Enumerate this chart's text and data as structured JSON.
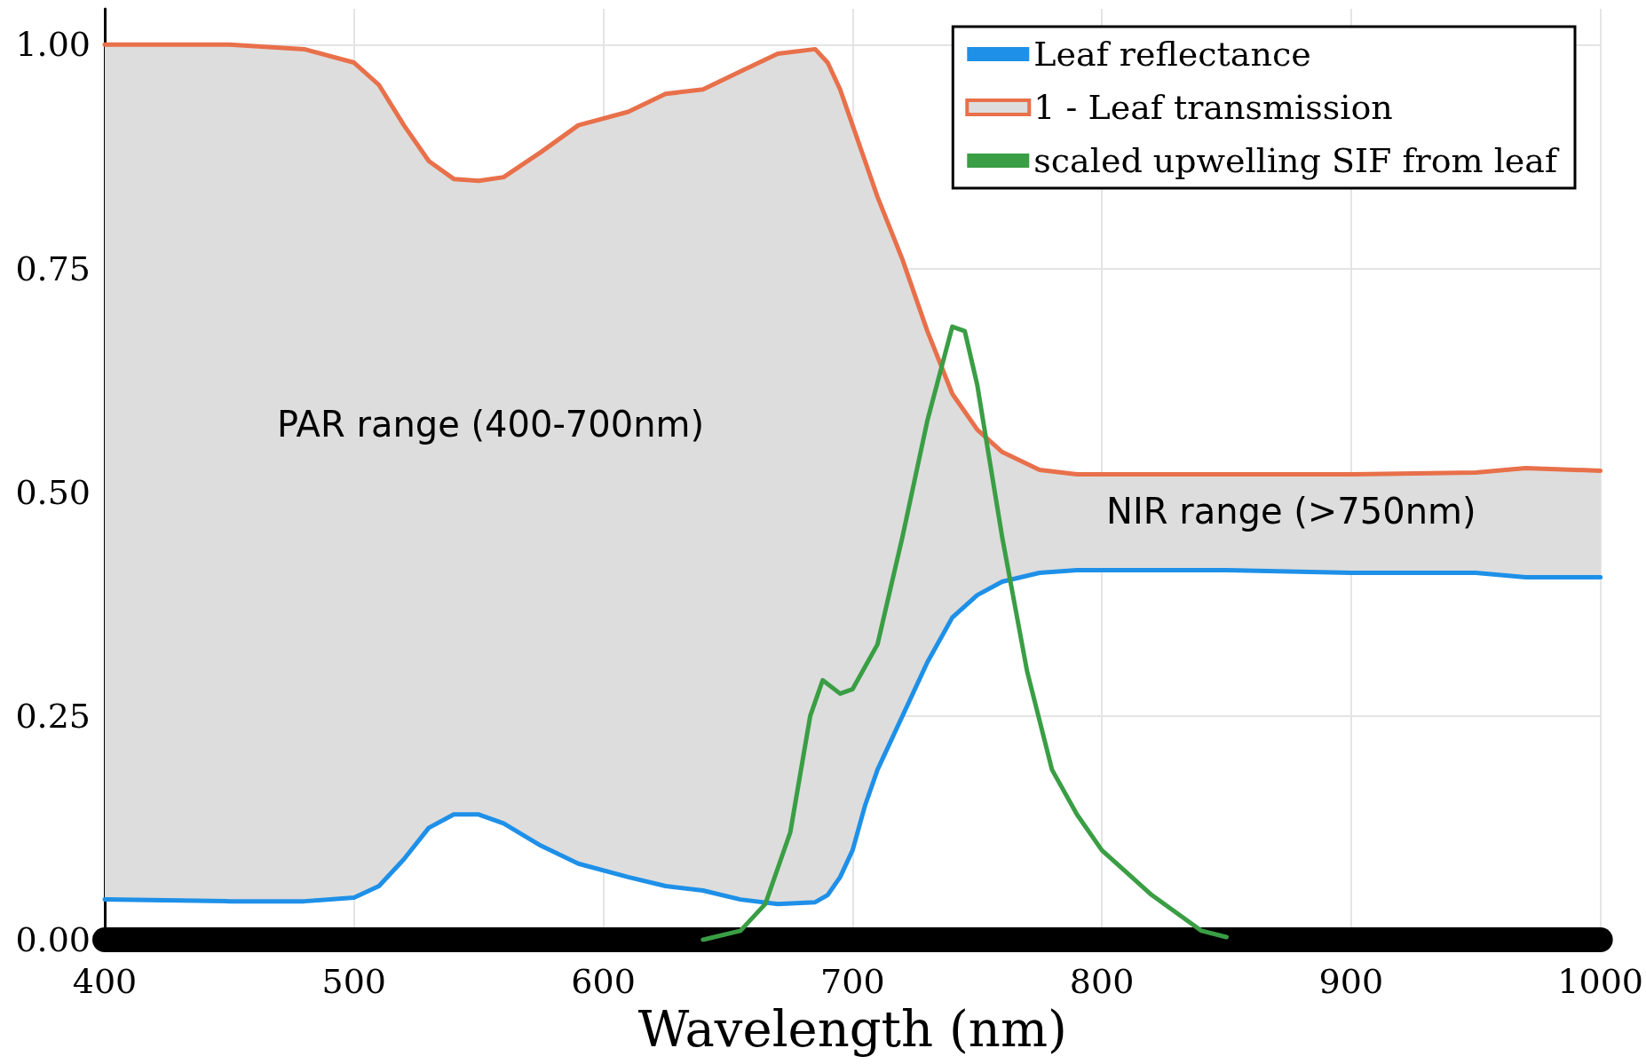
{
  "chart_data": {
    "type": "line",
    "xlabel": "Wavelength (nm)",
    "xlim": [
      400,
      1000
    ],
    "xticks": [
      400,
      500,
      600,
      700,
      800,
      900,
      1000
    ],
    "ylim": [
      0,
      1.04
    ],
    "yticks": [
      {
        "value": 0,
        "label": "0.00"
      },
      {
        "value": 0.25,
        "label": "0.25"
      },
      {
        "value": 0.5,
        "label": "0.50"
      },
      {
        "value": 0.75,
        "label": "0.75"
      },
      {
        "value": 1,
        "label": "1.00"
      }
    ],
    "grid": true,
    "legend": "top right",
    "marker": "none",
    "annotations": [
      "PAR range (400-700nm)",
      "NIR range (>750nm)"
    ],
    "series": [
      {
        "name": "Leaf reflectance",
        "color": "#1e90e8",
        "x": [
          400,
          450,
          480,
          500,
          510,
          520,
          530,
          540,
          550,
          560,
          575,
          590,
          610,
          625,
          640,
          655,
          670,
          685,
          690,
          695,
          700,
          705,
          710,
          720,
          730,
          740,
          750,
          760,
          775,
          790,
          800,
          850,
          900,
          950,
          970,
          1000
        ],
        "values": [
          0.045,
          0.043,
          0.043,
          0.047,
          0.06,
          0.09,
          0.125,
          0.14,
          0.14,
          0.13,
          0.105,
          0.085,
          0.07,
          0.06,
          0.055,
          0.045,
          0.04,
          0.042,
          0.05,
          0.07,
          0.1,
          0.15,
          0.19,
          0.25,
          0.31,
          0.36,
          0.385,
          0.4,
          0.41,
          0.413,
          0.413,
          0.413,
          0.41,
          0.41,
          0.405,
          0.405
        ]
      },
      {
        "name": "1 - Leaf transmission",
        "color": "#e8704a",
        "x": [
          400,
          450,
          480,
          500,
          510,
          520,
          530,
          540,
          550,
          560,
          575,
          590,
          610,
          625,
          640,
          655,
          670,
          685,
          690,
          695,
          700,
          705,
          710,
          720,
          730,
          740,
          750,
          760,
          775,
          790,
          800,
          850,
          900,
          950,
          970,
          1000
        ],
        "values": [
          1.0,
          1.0,
          0.995,
          0.98,
          0.955,
          0.91,
          0.87,
          0.85,
          0.848,
          0.852,
          0.88,
          0.91,
          0.925,
          0.945,
          0.95,
          0.97,
          0.99,
          0.995,
          0.98,
          0.95,
          0.91,
          0.87,
          0.83,
          0.76,
          0.68,
          0.61,
          0.57,
          0.545,
          0.525,
          0.52,
          0.52,
          0.52,
          0.52,
          0.522,
          0.527,
          0.524
        ],
        "lower": [
          0.045,
          0.043,
          0.043,
          0.047,
          0.06,
          0.09,
          0.125,
          0.14,
          0.14,
          0.13,
          0.105,
          0.085,
          0.07,
          0.06,
          0.055,
          0.045,
          0.04,
          0.042,
          0.05,
          0.07,
          0.1,
          0.15,
          0.19,
          0.25,
          0.31,
          0.36,
          0.385,
          0.4,
          0.41,
          0.413,
          0.413,
          0.413,
          0.41,
          0.41,
          0.405,
          0.405
        ],
        "upper": [
          1.0,
          1.0,
          0.995,
          0.98,
          0.955,
          0.91,
          0.87,
          0.85,
          0.848,
          0.852,
          0.88,
          0.91,
          0.925,
          0.945,
          0.95,
          0.97,
          0.99,
          0.995,
          0.98,
          0.95,
          0.91,
          0.87,
          0.83,
          0.76,
          0.68,
          0.61,
          0.57,
          0.545,
          0.525,
          0.52,
          0.52,
          0.52,
          0.52,
          0.522,
          0.527,
          0.524
        ]
      },
      {
        "name": "scaled upwelling SIF from leaf",
        "color": "#3a9e44",
        "x": [
          640,
          655,
          665,
          675,
          683,
          688,
          695,
          700,
          710,
          720,
          730,
          740,
          745,
          750,
          760,
          770,
          780,
          790,
          800,
          820,
          840,
          850
        ],
        "values": [
          0,
          0.01,
          0.04,
          0.12,
          0.25,
          0.29,
          0.275,
          0.28,
          0.33,
          0.45,
          0.58,
          0.685,
          0.68,
          0.62,
          0.45,
          0.3,
          0.19,
          0.14,
          0.1,
          0.05,
          0.01,
          0.003
        ]
      }
    ]
  }
}
